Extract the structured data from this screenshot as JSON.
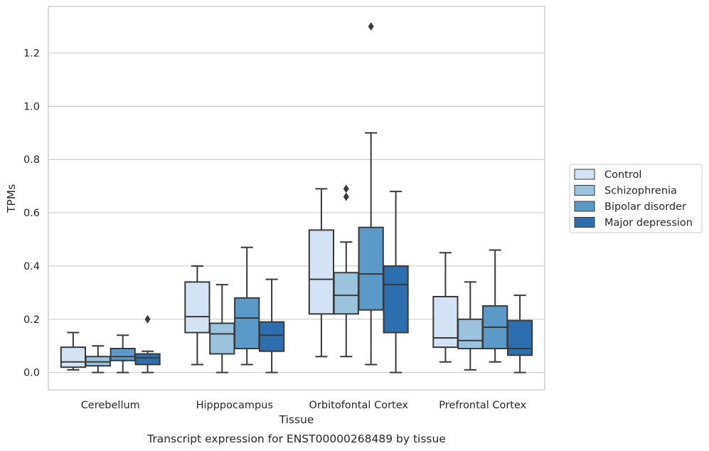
{
  "chart_data": {
    "type": "boxplot",
    "title": "Transcript expression for ENST00000268489 by tissue",
    "xlabel": "Tissue",
    "ylabel": "TPMs",
    "ylim": [
      -0.065,
      1.375
    ],
    "yticks": [
      "0.0",
      "0.2",
      "0.4",
      "0.6",
      "0.8",
      "1.0",
      "1.2"
    ],
    "grid": "horizontal",
    "legend_position": "right",
    "categories": [
      "Cerebellum",
      "Hipppocampus",
      "Orbitofontal Cortex",
      "Prefrontal Cortex"
    ],
    "series": [
      {
        "name": "Control",
        "color": "#d4e3f3",
        "boxes": [
          {
            "whislo": 0.01,
            "q1": 0.02,
            "med": 0.04,
            "q3": 0.095,
            "whishi": 0.15,
            "fliers": []
          },
          {
            "whislo": 0.03,
            "q1": 0.15,
            "med": 0.21,
            "q3": 0.34,
            "whishi": 0.4,
            "fliers": []
          },
          {
            "whislo": 0.06,
            "q1": 0.22,
            "med": 0.35,
            "q3": 0.535,
            "whishi": 0.69,
            "fliers": []
          },
          {
            "whislo": 0.04,
            "q1": 0.095,
            "med": 0.13,
            "q3": 0.285,
            "whishi": 0.45,
            "fliers": []
          }
        ]
      },
      {
        "name": "Schizophrenia",
        "color": "#9ac4de",
        "boxes": [
          {
            "whislo": 0.0,
            "q1": 0.025,
            "med": 0.04,
            "q3": 0.06,
            "whishi": 0.1,
            "fliers": []
          },
          {
            "whislo": 0.0,
            "q1": 0.07,
            "med": 0.145,
            "q3": 0.185,
            "whishi": 0.33,
            "fliers": []
          },
          {
            "whislo": 0.06,
            "q1": 0.22,
            "med": 0.29,
            "q3": 0.375,
            "whishi": 0.49,
            "fliers": [
              0.66,
              0.69
            ]
          },
          {
            "whislo": 0.01,
            "q1": 0.09,
            "med": 0.12,
            "q3": 0.2,
            "whishi": 0.34,
            "fliers": []
          }
        ]
      },
      {
        "name": "Bipolar disorder",
        "color": "#5b9ac8",
        "boxes": [
          {
            "whislo": 0.0,
            "q1": 0.045,
            "med": 0.06,
            "q3": 0.09,
            "whishi": 0.14,
            "fliers": []
          },
          {
            "whislo": 0.03,
            "q1": 0.09,
            "med": 0.205,
            "q3": 0.28,
            "whishi": 0.47,
            "fliers": []
          },
          {
            "whislo": 0.03,
            "q1": 0.235,
            "med": 0.37,
            "q3": 0.545,
            "whishi": 0.9,
            "fliers": [
              1.3
            ]
          },
          {
            "whislo": 0.04,
            "q1": 0.09,
            "med": 0.17,
            "q3": 0.25,
            "whishi": 0.46,
            "fliers": []
          }
        ]
      },
      {
        "name": "Major depression",
        "color": "#2d6fae",
        "boxes": [
          {
            "whislo": 0.0,
            "q1": 0.03,
            "med": 0.055,
            "q3": 0.07,
            "whishi": 0.08,
            "fliers": [
              0.2
            ]
          },
          {
            "whislo": 0.0,
            "q1": 0.08,
            "med": 0.14,
            "q3": 0.19,
            "whishi": 0.35,
            "fliers": []
          },
          {
            "whislo": 0.0,
            "q1": 0.15,
            "med": 0.33,
            "q3": 0.4,
            "whishi": 0.68,
            "fliers": []
          },
          {
            "whislo": 0.0,
            "q1": 0.065,
            "med": 0.09,
            "q3": 0.195,
            "whishi": 0.29,
            "fliers": []
          }
        ]
      }
    ]
  }
}
